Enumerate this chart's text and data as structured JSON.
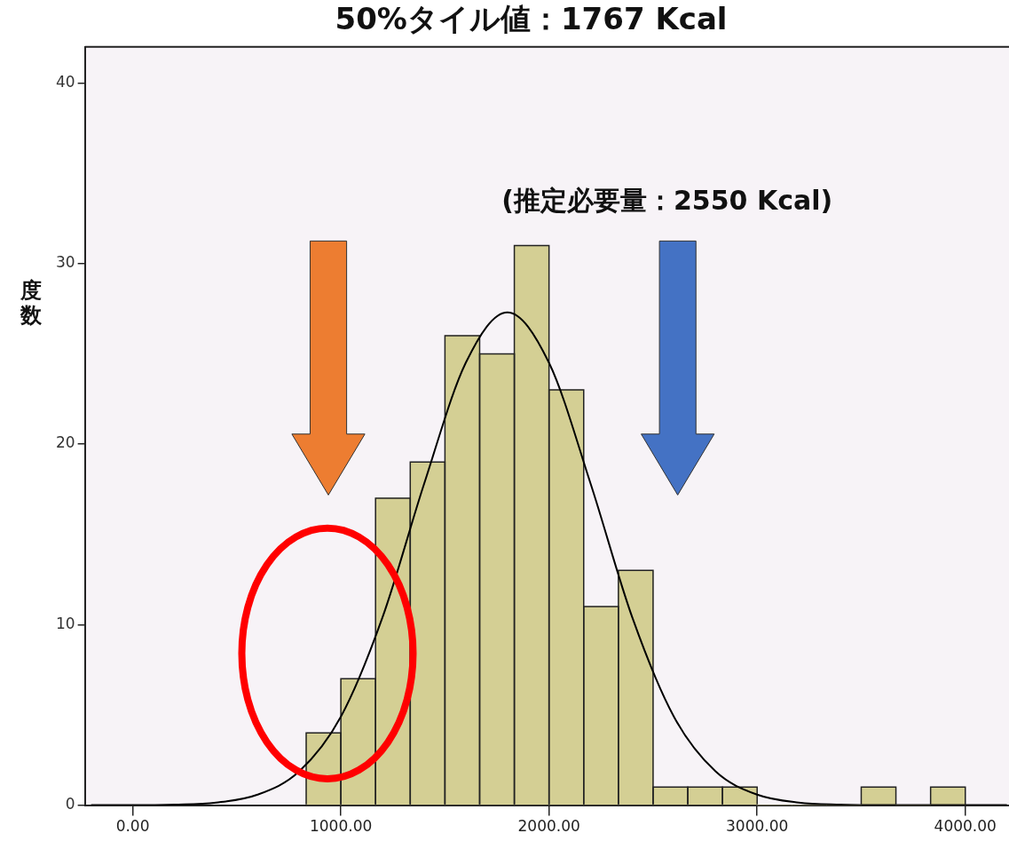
{
  "chart_data": {
    "type": "histogram",
    "title": "50%タイル値：1767 Kcal",
    "ylabel": "度数",
    "bins": [
      833.33,
      1000,
      1166.67,
      1333.33,
      1500,
      1666.67,
      1833.33,
      2000,
      2166.67,
      2333.33,
      2500,
      2666.67,
      2833.33,
      3000,
      3166.67,
      3333.33,
      3500,
      3666.67,
      3833.33,
      4000
    ],
    "values": [
      4,
      7,
      17,
      19,
      26,
      25,
      31,
      23,
      11,
      13,
      1,
      1,
      1,
      0,
      0,
      0,
      1,
      0,
      1
    ],
    "color": "#d4cf94",
    "series": [
      {
        "type": "line",
        "color": "#000000",
        "x": [
          -200,
          0,
          200,
          400,
          600,
          800,
          1000,
          1200,
          1400,
          1600,
          1800,
          2000,
          2200,
          2400,
          2600,
          2800,
          3000,
          3200,
          3400,
          3600,
          3800,
          4000,
          4200
        ],
        "values": [
          0,
          0,
          0.03,
          0.14,
          0.58,
          1.87,
          4.9,
          10.4,
          17.8,
          24.5,
          27.3,
          24.5,
          17.8,
          10.4,
          4.9,
          1.87,
          0.58,
          0.14,
          0.03,
          0,
          0,
          0,
          0
        ]
      }
    ],
    "xlim": [
      -230,
      4210
    ],
    "ylim": [
      0,
      42
    ],
    "xticks": [
      {
        "value": 0,
        "label": "0.00"
      },
      {
        "value": 1000,
        "label": "1000.00"
      },
      {
        "value": 2000,
        "label": "2000.00"
      },
      {
        "value": 3000,
        "label": "3000.00"
      },
      {
        "value": 4000,
        "label": "4000.00"
      }
    ],
    "yticks": [
      0,
      10,
      20,
      30,
      40
    ],
    "annotations": [
      "(推定必要量：2550 Kcal)"
    ],
    "marker": "none",
    "grid": false,
    "legend": false
  }
}
